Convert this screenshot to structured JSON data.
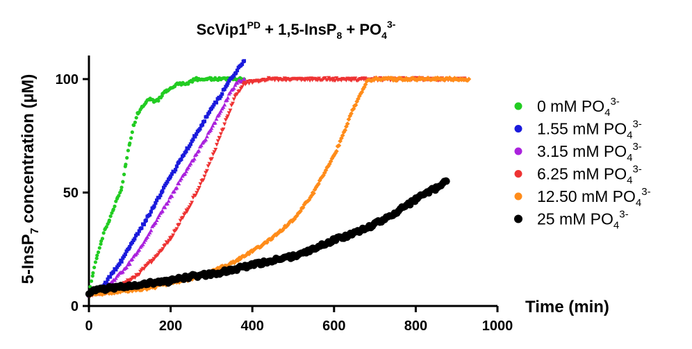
{
  "chart_data": {
    "type": "scatter",
    "title": "ScVip1PD + 1,5-InsP8 + PO43-",
    "title_parts": {
      "base1": "ScVip1",
      "sup1": "PD",
      "mid": " + 1,5-InsP",
      "sub1": "8",
      "mid2": " + PO",
      "sub2": "4",
      "sup2": "3-"
    },
    "xlabel": "Time (min)",
    "ylabel": "5-InsP7 concentration (µM)",
    "ylabel_parts": {
      "base": "5-InsP",
      "sub": "7",
      "rest": " concentration (µM)"
    },
    "xlim": [
      0,
      1000
    ],
    "ylim": [
      0,
      100
    ],
    "x_ticks": [
      0,
      200,
      400,
      600,
      800,
      1000
    ],
    "y_ticks": [
      0,
      50,
      100
    ],
    "legend_position": "right",
    "grid": false,
    "series": [
      {
        "name": "0 mM PO43-",
        "label_base": "0 mM PO",
        "color": "#22cc22",
        "marker": "circle",
        "x": [
          0,
          10,
          20,
          30,
          40,
          50,
          60,
          70,
          80,
          90,
          100,
          110,
          120,
          130,
          140,
          150,
          160,
          170,
          180,
          190,
          200,
          210,
          220,
          230,
          240,
          250,
          260,
          270,
          280,
          290,
          300,
          310,
          320,
          330,
          340,
          350,
          360,
          370,
          380
        ],
        "y": [
          6,
          14,
          22,
          28,
          34,
          38,
          43,
          48,
          52,
          62,
          72,
          80,
          85,
          88,
          90,
          91,
          90,
          91,
          93,
          95,
          96,
          97,
          98,
          98,
          98,
          99,
          100,
          100,
          100,
          100,
          100,
          100,
          100,
          100,
          100,
          100,
          100,
          100,
          100
        ]
      },
      {
        "name": "1.55 mM PO43-",
        "label_base": "1.55 mM PO",
        "color": "#1a1adc",
        "marker": "square",
        "x": [
          0,
          20,
          40,
          60,
          80,
          100,
          120,
          140,
          160,
          180,
          200,
          220,
          240,
          260,
          280,
          300,
          320,
          340,
          360,
          380
        ],
        "y": [
          5,
          7,
          10,
          15,
          20,
          26,
          32,
          38,
          44,
          51,
          57,
          63,
          69,
          75,
          81,
          87,
          92,
          98,
          103,
          108
        ]
      },
      {
        "name": "3.15 mM PO43-",
        "label_base": "3.15 mM PO",
        "color": "#aa22dd",
        "marker": "triangle",
        "x": [
          0,
          20,
          40,
          60,
          80,
          100,
          120,
          140,
          160,
          180,
          200,
          220,
          240,
          260,
          280,
          300,
          320,
          340,
          360,
          380
        ],
        "y": [
          5,
          6,
          8,
          11,
          15,
          19,
          24,
          30,
          36,
          42,
          48,
          54,
          60,
          66,
          72,
          78,
          85,
          92,
          98,
          100
        ]
      },
      {
        "name": "6.25 mM PO43-",
        "label_base": "6.25 mM PO",
        "color": "#ee3333",
        "marker": "triangle-down",
        "x": [
          0,
          40,
          80,
          120,
          160,
          200,
          240,
          280,
          320,
          340,
          360,
          380,
          400,
          440,
          480,
          520,
          560,
          600,
          640,
          680,
          720,
          760,
          800,
          840,
          880,
          920
        ],
        "y": [
          5,
          6,
          9,
          14,
          21,
          30,
          42,
          56,
          74,
          84,
          93,
          98,
          99,
          100,
          100,
          100,
          100,
          100,
          100,
          100,
          100,
          100,
          100,
          100,
          100,
          100
        ]
      },
      {
        "name": "12.50 mM PO43-",
        "label_base": "12.50 mM PO",
        "color": "#ff8c1a",
        "marker": "diamond",
        "x": [
          0,
          50,
          100,
          150,
          200,
          250,
          300,
          350,
          400,
          450,
          500,
          550,
          600,
          650,
          680,
          700,
          750,
          800,
          850,
          900,
          930
        ],
        "y": [
          5,
          6,
          7,
          8,
          10,
          12,
          15,
          19,
          24,
          30,
          38,
          50,
          66,
          88,
          99,
          100,
          100,
          100,
          100,
          100,
          100
        ]
      },
      {
        "name": "25 mM PO43-",
        "label_base": "25 mM PO",
        "color": "#000000",
        "marker": "circle-large",
        "x": [
          0,
          50,
          100,
          150,
          200,
          250,
          300,
          350,
          400,
          450,
          500,
          550,
          600,
          650,
          700,
          750,
          800,
          850,
          875
        ],
        "y": [
          6,
          8,
          9,
          10,
          11,
          13,
          14,
          16,
          18,
          20,
          22,
          25,
          29,
          32,
          36,
          41,
          47,
          52,
          55
        ]
      }
    ]
  }
}
